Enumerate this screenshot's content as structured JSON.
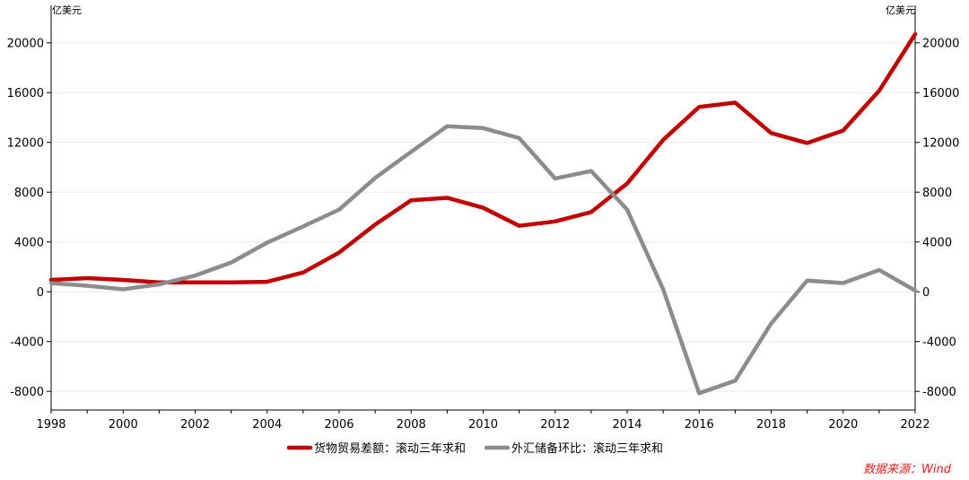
{
  "chart_data": {
    "type": "line",
    "y_unit_left": "亿美元",
    "y_unit_right": "亿美元",
    "x": [
      1998,
      1999,
      2000,
      2001,
      2002,
      2003,
      2004,
      2005,
      2006,
      2007,
      2008,
      2009,
      2010,
      2011,
      2012,
      2013,
      2014,
      2015,
      2016,
      2017,
      2018,
      2019,
      2020,
      2021,
      2022
    ],
    "x_ticks": [
      "1998",
      "2000",
      "2002",
      "2004",
      "2006",
      "2008",
      "2010",
      "2012",
      "2014",
      "2016",
      "2018",
      "2020",
      "2022"
    ],
    "xlim": [
      1998,
      2022
    ],
    "ylim": [
      -9500,
      22000
    ],
    "y_ticks": [
      "20000",
      "16000",
      "12000",
      "8000",
      "4000",
      "0",
      "-4000",
      "-8000"
    ],
    "grid": true,
    "legend_position": "bottom",
    "series": [
      {
        "name": "货物贸易差额：滚动三年求和",
        "color": "#c00000",
        "values": [
          950,
          1100,
          950,
          750,
          750,
          750,
          800,
          1550,
          3150,
          5400,
          7350,
          7550,
          6750,
          5300,
          5650,
          6400,
          8700,
          12200,
          14850,
          15200,
          12750,
          11950,
          12950,
          16150,
          20700
        ]
      },
      {
        "name": "外汇储备环比：滚动三年求和",
        "color": "#8c8c8c",
        "values": [
          700,
          480,
          200,
          600,
          1300,
          2350,
          3950,
          5250,
          6600,
          9150,
          11250,
          13300,
          13150,
          12350,
          9100,
          9700,
          6600,
          200,
          -8150,
          -7150,
          -2550,
          900,
          700,
          1750,
          100
        ]
      }
    ]
  },
  "source": "数据来源：Wind"
}
